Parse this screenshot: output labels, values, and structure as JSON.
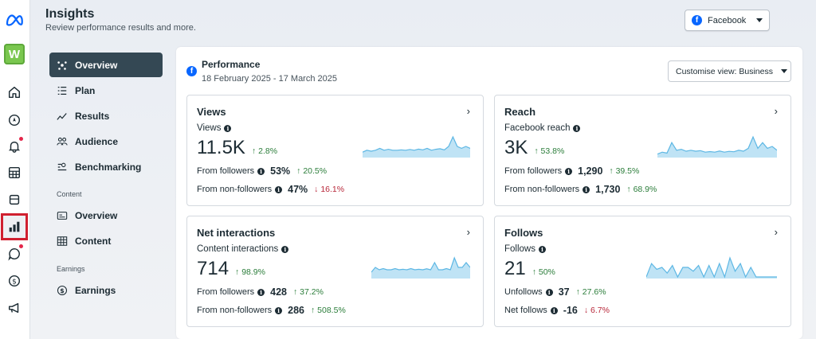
{
  "header": {
    "title": "Insights",
    "subtitle": "Review performance results and more.",
    "platform_label": "Facebook"
  },
  "account_badge": "W",
  "rail": {
    "items": [
      "meta-logo-icon",
      "home-icon",
      "compass-icon",
      "bell-icon",
      "table-icon",
      "layers-icon",
      "bar-chart-icon",
      "chat-icon",
      "dollar-icon",
      "megaphone-icon"
    ]
  },
  "subnav": {
    "items": [
      {
        "label": "Overview",
        "icon": "sparkle-icon"
      },
      {
        "label": "Plan",
        "icon": "list-icon"
      },
      {
        "label": "Results",
        "icon": "trend-icon"
      },
      {
        "label": "Audience",
        "icon": "people-icon"
      },
      {
        "label": "Benchmarking",
        "icon": "compare-icon"
      }
    ],
    "section_content": "Content",
    "content_items": [
      {
        "label": "Overview",
        "icon": "content-overview-icon"
      },
      {
        "label": "Content",
        "icon": "grid-icon"
      }
    ],
    "section_earnings": "Earnings",
    "earnings_items": [
      {
        "label": "Earnings",
        "icon": "dollar-icon"
      }
    ]
  },
  "performance": {
    "title": "Performance",
    "dates": "18 February 2025 - 17 March 2025",
    "customise_label": "Customise view: Business"
  },
  "cards": [
    {
      "title": "Views",
      "metric_label": "Views",
      "value": "11.5K",
      "change": "↑ 2.8%",
      "rows": [
        {
          "label": "From followers",
          "value": "53%",
          "change": "↑ 20.5%",
          "dir": "up"
        },
        {
          "label": "From non-followers",
          "value": "47%",
          "change": "↓ 16.1%",
          "dir": "down"
        }
      ],
      "spark": [
        2,
        3,
        2.5,
        3,
        4,
        3,
        3.5,
        3,
        3,
        3.2,
        3,
        3.4,
        3,
        3.6,
        3.2,
        4,
        3,
        3.5,
        3.8,
        3.2,
        5,
        10,
        5,
        4,
        5,
        4
      ]
    },
    {
      "title": "Reach",
      "metric_label": "Facebook reach",
      "value": "3K",
      "change": "↑ 53.8%",
      "rows": [
        {
          "label": "From followers",
          "value": "1,290",
          "change": "↑ 39.5%",
          "dir": "up"
        },
        {
          "label": "From non-followers",
          "value": "1,730",
          "change": "↑ 68.9%",
          "dir": "up"
        }
      ],
      "spark": [
        1,
        2,
        1.5,
        7,
        3,
        3.5,
        2.5,
        3,
        2.5,
        2.8,
        2,
        2.3,
        2,
        2.6,
        2,
        2.4,
        2.2,
        3,
        2.5,
        4,
        10,
        4,
        7,
        4,
        5,
        3
      ]
    },
    {
      "title": "Net interactions",
      "metric_label": "Content interactions",
      "value": "714",
      "change": "↑ 98.9%",
      "rows": [
        {
          "label": "From followers",
          "value": "428",
          "change": "↑ 37.2%",
          "dir": "up"
        },
        {
          "label": "From non-followers",
          "value": "286",
          "change": "↑ 508.5%",
          "dir": "up"
        }
      ],
      "spark": [
        2,
        4,
        3,
        3.5,
        3,
        3,
        3.5,
        3,
        3.2,
        3,
        3.5,
        3,
        3.2,
        3,
        3.4,
        3,
        6,
        3,
        3,
        3.5,
        3,
        8,
        4,
        4,
        6,
        4
      ]
    },
    {
      "title": "Follows",
      "metric_label": "Follows",
      "value": "21",
      "change": "↑ 50%",
      "rows": [
        {
          "label": "Unfollows",
          "value": "37",
          "change": "↑ 27.6%",
          "dir": "up"
        },
        {
          "label": "Net follows",
          "value": "-16",
          "change": "↓ 6.7%",
          "dir": "down"
        }
      ],
      "spark": [
        0,
        7,
        4,
        5,
        2,
        6,
        0,
        5,
        5,
        3,
        6,
        0,
        6,
        0,
        7,
        0,
        10,
        3,
        7,
        0,
        5,
        0,
        0,
        0,
        0,
        0
      ]
    }
  ]
}
